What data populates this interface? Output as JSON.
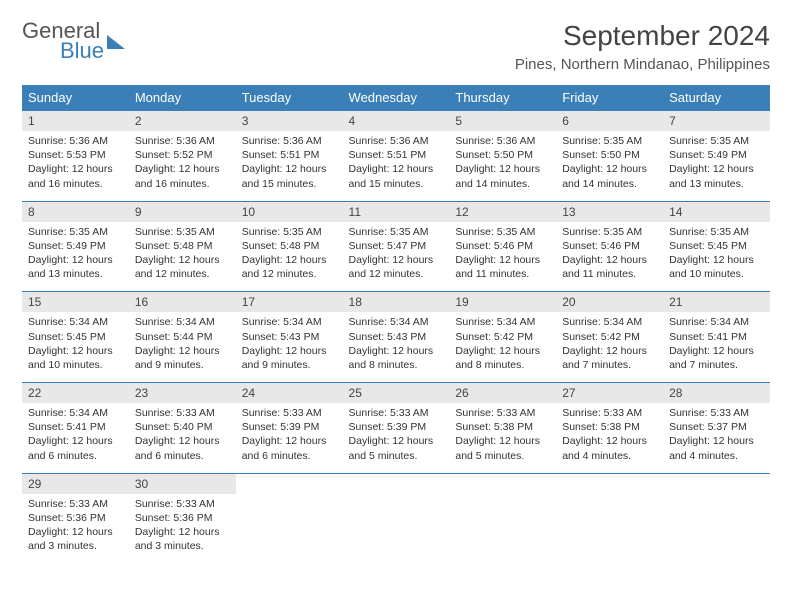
{
  "brand": {
    "text1": "General",
    "text2": "Blue"
  },
  "title": "September 2024",
  "location": "Pines, Northern Mindanao, Philippines",
  "colors": {
    "header_bg": "#3a7fb8",
    "header_text": "#ffffff",
    "daynum_bg": "#e8e8e8",
    "border": "#3a7fb8",
    "text": "#333333"
  },
  "day_headers": [
    "Sunday",
    "Monday",
    "Tuesday",
    "Wednesday",
    "Thursday",
    "Friday",
    "Saturday"
  ],
  "weeks": [
    [
      {
        "n": "1",
        "sr": "5:36 AM",
        "ss": "5:53 PM",
        "dl": "12 hours and 16 minutes."
      },
      {
        "n": "2",
        "sr": "5:36 AM",
        "ss": "5:52 PM",
        "dl": "12 hours and 16 minutes."
      },
      {
        "n": "3",
        "sr": "5:36 AM",
        "ss": "5:51 PM",
        "dl": "12 hours and 15 minutes."
      },
      {
        "n": "4",
        "sr": "5:36 AM",
        "ss": "5:51 PM",
        "dl": "12 hours and 15 minutes."
      },
      {
        "n": "5",
        "sr": "5:36 AM",
        "ss": "5:50 PM",
        "dl": "12 hours and 14 minutes."
      },
      {
        "n": "6",
        "sr": "5:35 AM",
        "ss": "5:50 PM",
        "dl": "12 hours and 14 minutes."
      },
      {
        "n": "7",
        "sr": "5:35 AM",
        "ss": "5:49 PM",
        "dl": "12 hours and 13 minutes."
      }
    ],
    [
      {
        "n": "8",
        "sr": "5:35 AM",
        "ss": "5:49 PM",
        "dl": "12 hours and 13 minutes."
      },
      {
        "n": "9",
        "sr": "5:35 AM",
        "ss": "5:48 PM",
        "dl": "12 hours and 12 minutes."
      },
      {
        "n": "10",
        "sr": "5:35 AM",
        "ss": "5:48 PM",
        "dl": "12 hours and 12 minutes."
      },
      {
        "n": "11",
        "sr": "5:35 AM",
        "ss": "5:47 PM",
        "dl": "12 hours and 12 minutes."
      },
      {
        "n": "12",
        "sr": "5:35 AM",
        "ss": "5:46 PM",
        "dl": "12 hours and 11 minutes."
      },
      {
        "n": "13",
        "sr": "5:35 AM",
        "ss": "5:46 PM",
        "dl": "12 hours and 11 minutes."
      },
      {
        "n": "14",
        "sr": "5:35 AM",
        "ss": "5:45 PM",
        "dl": "12 hours and 10 minutes."
      }
    ],
    [
      {
        "n": "15",
        "sr": "5:34 AM",
        "ss": "5:45 PM",
        "dl": "12 hours and 10 minutes."
      },
      {
        "n": "16",
        "sr": "5:34 AM",
        "ss": "5:44 PM",
        "dl": "12 hours and 9 minutes."
      },
      {
        "n": "17",
        "sr": "5:34 AM",
        "ss": "5:43 PM",
        "dl": "12 hours and 9 minutes."
      },
      {
        "n": "18",
        "sr": "5:34 AM",
        "ss": "5:43 PM",
        "dl": "12 hours and 8 minutes."
      },
      {
        "n": "19",
        "sr": "5:34 AM",
        "ss": "5:42 PM",
        "dl": "12 hours and 8 minutes."
      },
      {
        "n": "20",
        "sr": "5:34 AM",
        "ss": "5:42 PM",
        "dl": "12 hours and 7 minutes."
      },
      {
        "n": "21",
        "sr": "5:34 AM",
        "ss": "5:41 PM",
        "dl": "12 hours and 7 minutes."
      }
    ],
    [
      {
        "n": "22",
        "sr": "5:34 AM",
        "ss": "5:41 PM",
        "dl": "12 hours and 6 minutes."
      },
      {
        "n": "23",
        "sr": "5:33 AM",
        "ss": "5:40 PM",
        "dl": "12 hours and 6 minutes."
      },
      {
        "n": "24",
        "sr": "5:33 AM",
        "ss": "5:39 PM",
        "dl": "12 hours and 6 minutes."
      },
      {
        "n": "25",
        "sr": "5:33 AM",
        "ss": "5:39 PM",
        "dl": "12 hours and 5 minutes."
      },
      {
        "n": "26",
        "sr": "5:33 AM",
        "ss": "5:38 PM",
        "dl": "12 hours and 5 minutes."
      },
      {
        "n": "27",
        "sr": "5:33 AM",
        "ss": "5:38 PM",
        "dl": "12 hours and 4 minutes."
      },
      {
        "n": "28",
        "sr": "5:33 AM",
        "ss": "5:37 PM",
        "dl": "12 hours and 4 minutes."
      }
    ],
    [
      {
        "n": "29",
        "sr": "5:33 AM",
        "ss": "5:36 PM",
        "dl": "12 hours and 3 minutes."
      },
      {
        "n": "30",
        "sr": "5:33 AM",
        "ss": "5:36 PM",
        "dl": "12 hours and 3 minutes."
      },
      null,
      null,
      null,
      null,
      null
    ]
  ],
  "labels": {
    "sunrise": "Sunrise:",
    "sunset": "Sunset:",
    "daylight": "Daylight:"
  }
}
